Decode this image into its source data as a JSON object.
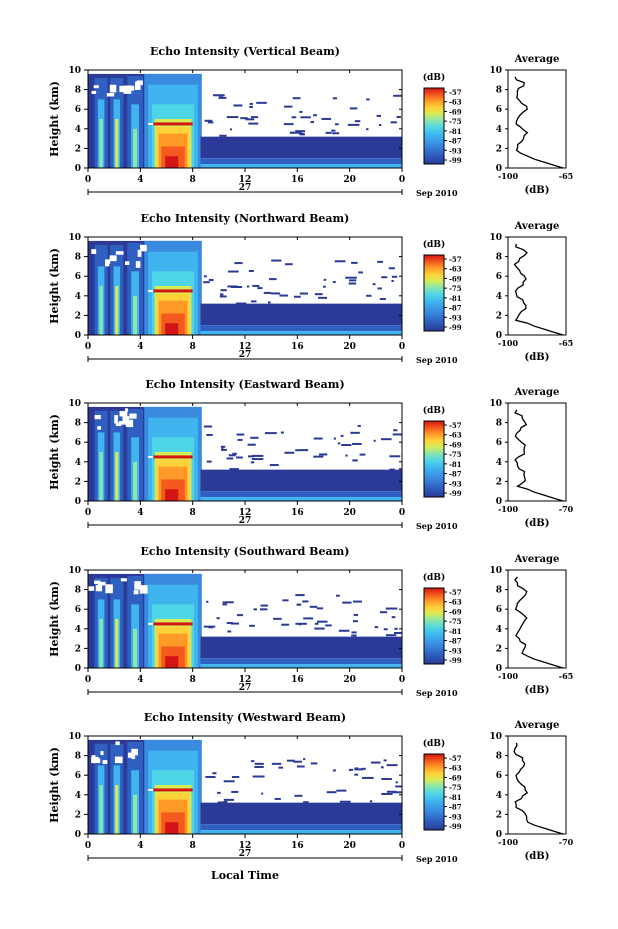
{
  "figure": {
    "common": {
      "ylabel": "Height (km)",
      "y_ticks": [
        "0",
        "2",
        "4",
        "6",
        "8",
        "10"
      ],
      "x_ticks": [
        "0",
        "4",
        "8",
        "12",
        "16",
        "20",
        "0"
      ],
      "day_label": "27",
      "date_label": "Sep 2010",
      "colorbar_unit": "(dB)",
      "colorbar_ticks": [
        "-57",
        "-63",
        "-69",
        "-75",
        "-81",
        "-87",
        "-93",
        "-99"
      ],
      "avg_title": "Average",
      "avg_xlabel": "(dB)",
      "xlabel_bottom": "Local Time"
    },
    "colors": {
      "colormap": [
        "#2a3a96",
        "#2f5fc0",
        "#3a8ae0",
        "#3fb4ef",
        "#4fd6e6",
        "#8fe6a8",
        "#d6ec55",
        "#ffd23a",
        "#ff9a28",
        "#f45a1e",
        "#d21414",
        "#8a0000"
      ],
      "frame": "#000000",
      "background": "#ffffff"
    }
  },
  "chart_data": [
    {
      "type": "heatmap",
      "title": "Echo Intensity (Vertical Beam)",
      "x_range_hours": [
        0,
        24
      ],
      "y_range_km": [
        0,
        10
      ],
      "z_range_db": [
        -99,
        -57
      ],
      "avg_profile": {
        "xlim": [
          "-100",
          "-65"
        ],
        "x_tick_labels": [
          "-100",
          "-65"
        ]
      }
    },
    {
      "type": "heatmap",
      "title": "Echo Intensity (Northward Beam)",
      "x_range_hours": [
        0,
        24
      ],
      "y_range_km": [
        0,
        10
      ],
      "z_range_db": [
        -99,
        -57
      ],
      "avg_profile": {
        "xlim": [
          "-100",
          "-65"
        ],
        "x_tick_labels": [
          "-100",
          "-65"
        ]
      }
    },
    {
      "type": "heatmap",
      "title": "Echo Intensity (Eastward Beam)",
      "x_range_hours": [
        0,
        24
      ],
      "y_range_km": [
        0,
        10
      ],
      "z_range_db": [
        -99,
        -57
      ],
      "avg_profile": {
        "xlim": [
          "-100",
          "-70"
        ],
        "x_tick_labels": [
          "-100",
          "-70"
        ]
      }
    },
    {
      "type": "heatmap",
      "title": "Echo Intensity (Southward Beam)",
      "x_range_hours": [
        0,
        24
      ],
      "y_range_km": [
        0,
        10
      ],
      "z_range_db": [
        -99,
        -57
      ],
      "avg_profile": {
        "xlim": [
          "-100",
          "-65"
        ],
        "x_tick_labels": [
          "-100",
          "-65"
        ]
      }
    },
    {
      "type": "heatmap",
      "title": "Echo Intensity (Westward Beam)",
      "x_range_hours": [
        0,
        24
      ],
      "y_range_km": [
        0,
        10
      ],
      "z_range_db": [
        -99,
        -57
      ],
      "avg_profile": {
        "xlim": [
          "-100",
          "-70"
        ],
        "x_tick_labels": [
          "-100",
          "-70"
        ]
      }
    }
  ]
}
